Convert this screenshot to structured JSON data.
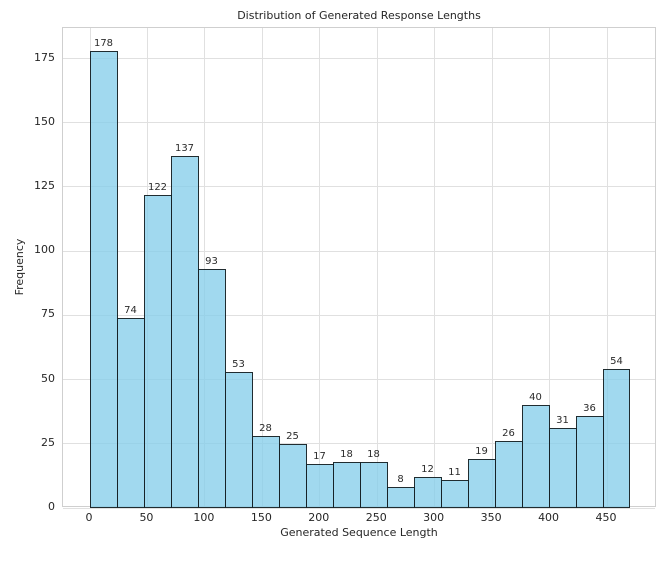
{
  "chart_data": {
    "type": "bar",
    "subtype": "histogram",
    "title": "Distribution of Generated Response Lengths",
    "xlabel": "Generated Sequence Length",
    "ylabel": "Frequency",
    "bin_start": 0,
    "bin_width": 23.5,
    "values": [
      178,
      74,
      122,
      137,
      93,
      53,
      28,
      25,
      17,
      18,
      18,
      8,
      12,
      11,
      19,
      26,
      40,
      31,
      36,
      54
    ],
    "x_ticks": [
      0,
      50,
      100,
      150,
      200,
      250,
      300,
      350,
      400,
      450
    ],
    "y_ticks": [
      0,
      25,
      50,
      75,
      100,
      125,
      150,
      175
    ],
    "xlim": [
      -23.5,
      493.5
    ],
    "ylim": [
      0,
      186.9
    ],
    "grid": true,
    "legend_position": "none",
    "colors": {
      "bar_fill": "#87ceeb",
      "bar_fill_alpha": 0.78,
      "bar_edge": "#000000",
      "bar_edge_alpha": 0.8,
      "grid": "#e0e0e0",
      "spine": "#cfcfcf",
      "text": "#262626"
    }
  }
}
